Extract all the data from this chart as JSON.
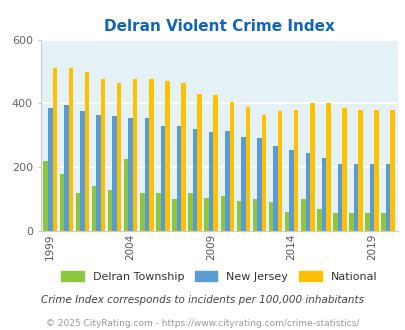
{
  "title": "Delran Violent Crime Index",
  "title_color": "#1166bb",
  "subtitle": "Crime Index corresponds to incidents per 100,000 inhabitants",
  "footer": "© 2025 CityRating.com - https://www.cityrating.com/crime-statistics/",
  "years": [
    1999,
    2000,
    2001,
    2002,
    2003,
    2004,
    2005,
    2006,
    2007,
    2008,
    2009,
    2010,
    2011,
    2012,
    2013,
    2014,
    2015,
    2016,
    2017,
    2018,
    2019,
    2020
  ],
  "delran": [
    220,
    180,
    120,
    140,
    130,
    225,
    120,
    120,
    100,
    120,
    105,
    110,
    95,
    100,
    90,
    60,
    100,
    70,
    55,
    55,
    55,
    55
  ],
  "nj": [
    385,
    395,
    375,
    365,
    360,
    355,
    355,
    330,
    330,
    320,
    310,
    315,
    295,
    290,
    265,
    255,
    245,
    230,
    210,
    210,
    210,
    210
  ],
  "national": [
    510,
    510,
    500,
    475,
    465,
    475,
    475,
    470,
    465,
    430,
    425,
    405,
    390,
    365,
    375,
    380,
    400,
    400,
    385,
    380,
    380,
    380
  ],
  "delran_color": "#8dc63f",
  "nj_color": "#5b9bd5",
  "national_color": "#ffc000",
  "bg_color": "#e5f2f5",
  "ylim": [
    0,
    600
  ],
  "yticks": [
    0,
    200,
    400,
    600
  ],
  "bar_width": 0.28,
  "legend_labels": [
    "Delran Township",
    "New Jersey",
    "National"
  ],
  "subtitle_color": "#444444",
  "footer_color": "#999999",
  "tick_years": [
    1999,
    2004,
    2009,
    2014,
    2019
  ]
}
